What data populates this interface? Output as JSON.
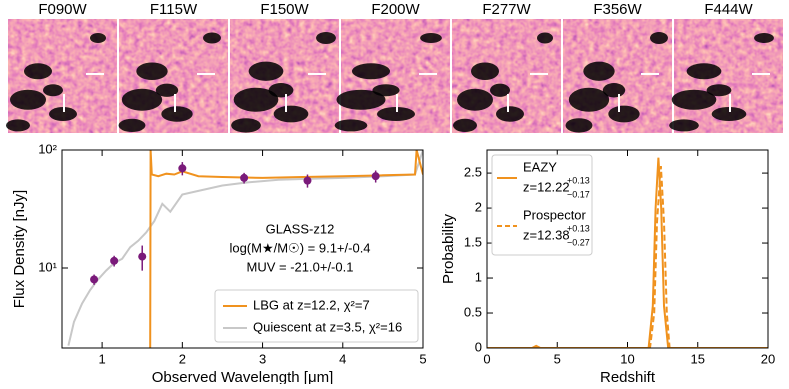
{
  "image_panels": [
    "F090W",
    "F115W",
    "F150W",
    "F200W",
    "F277W",
    "F356W",
    "F444W"
  ],
  "chart_data": [
    {
      "type": "line",
      "ylabel": "Flux Density [nJy]",
      "xlabel": "Observed Wavelength [μm]",
      "xlim": [
        0.5,
        5
      ],
      "xticks": [
        1,
        2,
        3,
        4,
        5
      ],
      "ylim": [
        2.1,
        100
      ],
      "yticks": [
        {
          "value": 10,
          "label": "10¹"
        },
        {
          "value": 100,
          "label": "10²"
        }
      ],
      "log_y": true,
      "annotations": [
        "GLASS-z12",
        "log(M★/M☉) = 9.1+/-0.4",
        "MUV = -21.0+/-0.1"
      ],
      "legend": "lower right",
      "series": [
        {
          "name": "Quiescent at z=3.5, χ²=16",
          "color": "#c8c8c8",
          "x": [
            0.58,
            0.65,
            0.75,
            0.85,
            0.95,
            1.05,
            1.15,
            1.25,
            1.35,
            1.45,
            1.55,
            1.65,
            1.75,
            1.85,
            2.0,
            2.2,
            2.5,
            2.8,
            3.2,
            3.6,
            4.0,
            4.5,
            4.9,
            5.0
          ],
          "values": [
            2.2,
            3.5,
            5,
            6.5,
            8,
            9.5,
            11,
            12,
            15,
            17,
            20,
            25,
            35,
            30,
            42,
            45,
            50,
            53,
            56,
            57,
            58,
            60,
            62,
            100
          ]
        },
        {
          "name": "LBG at z=12.2, χ²=7",
          "color": "#f0921e",
          "x": [
            1.6,
            1.605,
            1.62,
            1.7,
            1.8,
            1.9,
            2.0,
            2.2,
            2.5,
            3.0,
            3.5,
            4.0,
            4.5,
            4.9,
            4.92,
            5.0
          ],
          "values": [
            2.1,
            100,
            62,
            60,
            63,
            62,
            66,
            60,
            59,
            58,
            59,
            60,
            61,
            62,
            100,
            62
          ]
        }
      ],
      "points": {
        "color": "#7a1a7a",
        "x": [
          0.9,
          1.15,
          1.5,
          2.0,
          2.77,
          3.56,
          4.41
        ],
        "values": [
          8,
          11.5,
          12.5,
          70,
          58,
          55,
          60
        ],
        "errors": [
          0.8,
          1.2,
          3,
          9,
          6,
          7,
          7
        ]
      }
    },
    {
      "type": "line",
      "ylabel": "Probability",
      "xlabel": "Redshift",
      "xlim": [
        0,
        20
      ],
      "xticks": [
        0,
        5,
        10,
        15,
        20
      ],
      "ylim": [
        0,
        2.83
      ],
      "yticks": [
        0,
        0.5,
        1,
        1.5,
        2,
        2.5
      ],
      "legend": "upper left",
      "series": [
        {
          "name": "EAZY",
          "redshift": "z=12.22",
          "upper": "+0.13",
          "lower": "−0.17",
          "color": "#f0921e",
          "dash": false,
          "x": [
            0,
            3.2,
            3.5,
            3.8,
            11.5,
            11.8,
            12.0,
            12.2,
            12.4,
            12.6,
            12.9,
            20
          ],
          "values": [
            0,
            0,
            0.03,
            0,
            0,
            0.6,
            2.0,
            2.72,
            2.0,
            0.6,
            0,
            0
          ]
        },
        {
          "name": "Prospector",
          "redshift": "z=12.38",
          "upper": "+0.13",
          "lower": "−0.27",
          "color": "#f0921e",
          "dash": true,
          "x": [
            0,
            11.6,
            11.9,
            12.1,
            12.38,
            12.6,
            12.8,
            13.0,
            20
          ],
          "values": [
            0,
            0,
            0.5,
            1.8,
            2.6,
            1.8,
            0.5,
            0,
            0
          ]
        }
      ]
    }
  ]
}
